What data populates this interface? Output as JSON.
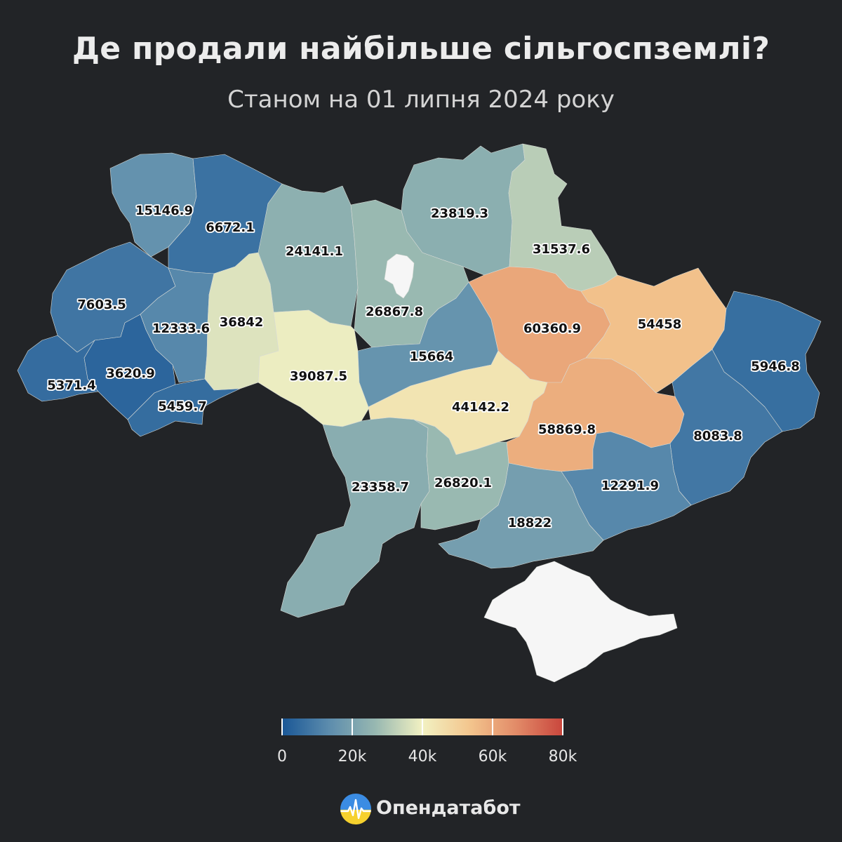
{
  "header": {
    "title": "Де продали найбільше сільгоспземлі?",
    "subtitle": "Станом на 01 липня 2024 року"
  },
  "colors": {
    "background": "#222427",
    "no_data": "#f6f6f6",
    "scale_stops": [
      "#1a5796",
      "#5c8cad",
      "#98b8b1",
      "#f2f1c2",
      "#f3c68e",
      "#e28b68",
      "#c9463d"
    ]
  },
  "legend": {
    "min": 0,
    "max": 80000,
    "ticks": [
      {
        "value": 0,
        "label": "0"
      },
      {
        "value": 20000,
        "label": "20k"
      },
      {
        "value": 40000,
        "label": "40k"
      },
      {
        "value": 60000,
        "label": "60k"
      },
      {
        "value": 80000,
        "label": "80k"
      }
    ]
  },
  "regions": [
    {
      "id": "volyn",
      "label": "15146.9",
      "value": 15146.9
    },
    {
      "id": "rivne",
      "label": "6672.1",
      "value": 6672.1
    },
    {
      "id": "zhytomyr",
      "label": "24141.1",
      "value": 24141.1
    },
    {
      "id": "kyiv-oblast",
      "label": "26867.8",
      "value": 26867.8
    },
    {
      "id": "chernihiv",
      "label": "23819.3",
      "value": 23819.3
    },
    {
      "id": "sumy",
      "label": "31537.6",
      "value": 31537.6
    },
    {
      "id": "lviv",
      "label": "7603.5",
      "value": 7603.5
    },
    {
      "id": "ternopil",
      "label": "12333.6",
      "value": 12333.6
    },
    {
      "id": "khmelnytskyi",
      "label": "36842",
      "value": 36842
    },
    {
      "id": "vinnytsia",
      "label": "39087.5",
      "value": 39087.5
    },
    {
      "id": "cherkasy",
      "label": "15664",
      "value": 15664
    },
    {
      "id": "poltava",
      "label": "60360.9",
      "value": 60360.9
    },
    {
      "id": "kharkiv",
      "label": "54458",
      "value": 54458
    },
    {
      "id": "luhansk",
      "label": "5946.8",
      "value": 5946.8
    },
    {
      "id": "zakarpattia",
      "label": "5371.4",
      "value": 5371.4
    },
    {
      "id": "ivano-frankivsk",
      "label": "3620.9",
      "value": 3620.9
    },
    {
      "id": "chernivtsi",
      "label": "5459.7",
      "value": 5459.7
    },
    {
      "id": "kirovohrad",
      "label": "44142.2",
      "value": 44142.2
    },
    {
      "id": "dnipropetrovsk",
      "label": "58869.8",
      "value": 58869.8
    },
    {
      "id": "donetsk",
      "label": "8083.8",
      "value": 8083.8
    },
    {
      "id": "zaporizhzhia",
      "label": "12291.9",
      "value": 12291.9
    },
    {
      "id": "odesa",
      "label": "23358.7",
      "value": 23358.7
    },
    {
      "id": "mykolaiv",
      "label": "26820.1",
      "value": 26820.1
    },
    {
      "id": "kherson",
      "label": "18822",
      "value": 18822
    },
    {
      "id": "kyiv-city",
      "label": "",
      "value": null
    },
    {
      "id": "crimea",
      "label": "",
      "value": null
    }
  ],
  "brand": {
    "name": "Опендатабот",
    "logo_icon": "opendatabot-logo-icon"
  }
}
